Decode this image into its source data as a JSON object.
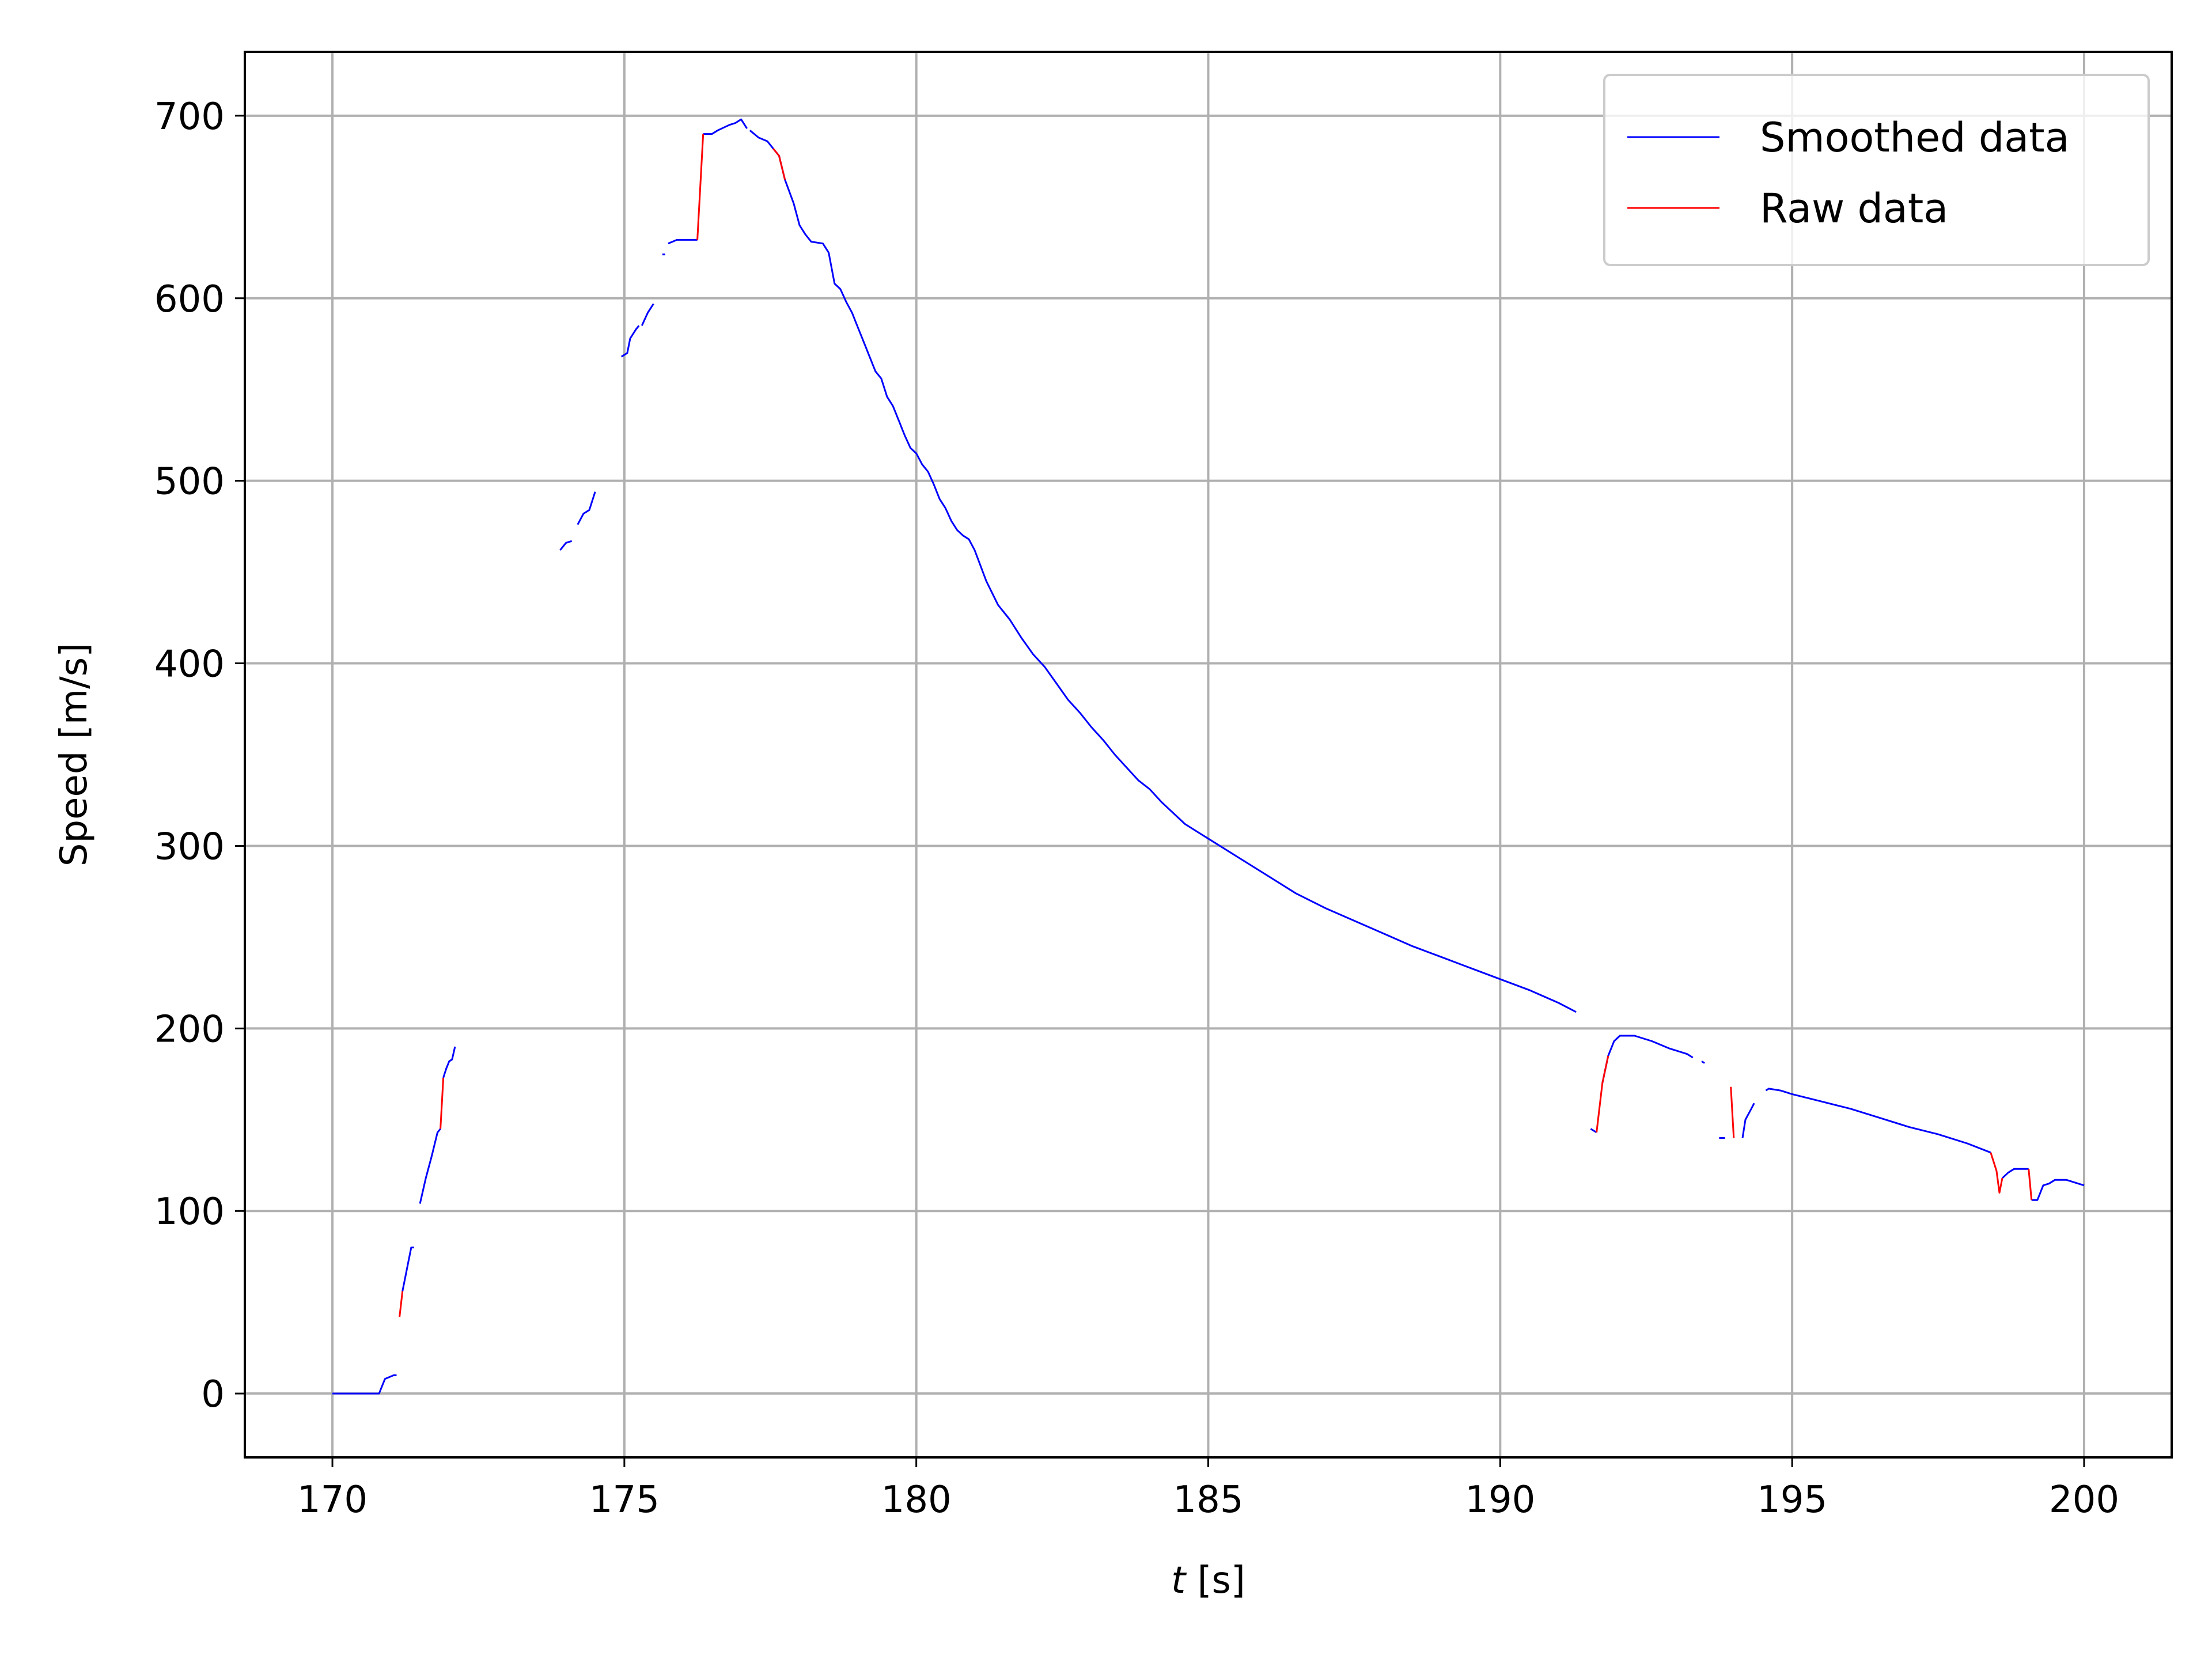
{
  "chart_data": {
    "type": "line",
    "title": "",
    "xlabel_var": "t",
    "xlabel_unit": " [s]",
    "ylabel": "Speed [m/s]",
    "xlim": [
      168.5,
      201.5
    ],
    "ylim": [
      -35,
      735
    ],
    "xticks": [
      170,
      175,
      180,
      185,
      190,
      195,
      200
    ],
    "yticks": [
      0,
      100,
      200,
      300,
      400,
      500,
      600,
      700
    ],
    "grid": true,
    "legend": {
      "placement": "top-right"
    },
    "series": [
      {
        "name": "Smoothed data",
        "color": "#0000ff",
        "segments": [
          [
            [
              170.0,
              0
            ],
            [
              170.8,
              0
            ],
            [
              170.9,
              8
            ],
            [
              171.05,
              10
            ],
            [
              171.1,
              10
            ]
          ],
          [
            [
              171.2,
              56
            ],
            [
              171.3,
              72
            ],
            [
              171.35,
              80
            ],
            [
              171.4,
              80
            ]
          ],
          [
            [
              171.5,
              104
            ],
            [
              171.6,
              118
            ],
            [
              171.7,
              130
            ],
            [
              171.8,
              143
            ],
            [
              171.85,
              145
            ]
          ],
          [
            [
              171.9,
              173
            ],
            [
              171.95,
              178
            ],
            [
              172.0,
              182
            ],
            [
              172.05,
              183
            ],
            [
              172.1,
              190
            ]
          ],
          [
            [
              173.9,
              462
            ],
            [
              174.0,
              466
            ],
            [
              174.1,
              467
            ]
          ],
          [
            [
              174.2,
              476
            ],
            [
              174.3,
              482
            ],
            [
              174.4,
              484
            ],
            [
              174.5,
              494
            ]
          ],
          [
            [
              174.95,
              568
            ],
            [
              175.05,
              570
            ],
            [
              175.1,
              578
            ],
            [
              175.2,
              583
            ],
            [
              175.25,
              585
            ]
          ],
          [
            [
              175.3,
              585
            ],
            [
              175.4,
              592
            ],
            [
              175.5,
              597
            ]
          ],
          [
            [
              175.65,
              624
            ],
            [
              175.7,
              624
            ]
          ],
          [
            [
              175.75,
              630
            ],
            [
              175.9,
              632
            ],
            [
              176.1,
              632
            ],
            [
              176.25,
              632
            ]
          ],
          [
            [
              176.35,
              690
            ],
            [
              176.5,
              690
            ],
            [
              176.6,
              692
            ],
            [
              176.8,
              695
            ],
            [
              176.9,
              696
            ],
            [
              177.0,
              698
            ],
            [
              177.1,
              693
            ]
          ],
          [
            [
              177.15,
              692
            ],
            [
              177.3,
              688
            ],
            [
              177.45,
              686
            ],
            [
              177.55,
              682
            ],
            [
              177.65,
              678
            ],
            [
              177.75,
              665
            ],
            [
              177.9,
              652
            ],
            [
              178.0,
              640
            ],
            [
              178.1,
              635
            ],
            [
              178.2,
              631
            ],
            [
              178.4,
              630
            ],
            [
              178.5,
              625
            ],
            [
              178.6,
              608
            ],
            [
              178.7,
              605
            ],
            [
              178.8,
              598
            ],
            [
              178.9,
              592
            ],
            [
              179.0,
              584
            ],
            [
              179.1,
              576
            ],
            [
              179.2,
              568
            ],
            [
              179.3,
              560
            ],
            [
              179.4,
              556
            ],
            [
              179.5,
              546
            ],
            [
              179.6,
              541
            ],
            [
              179.7,
              533
            ],
            [
              179.8,
              525
            ],
            [
              179.9,
              518
            ],
            [
              180.0,
              515
            ],
            [
              180.1,
              509
            ],
            [
              180.2,
              505
            ],
            [
              180.3,
              498
            ],
            [
              180.4,
              490
            ],
            [
              180.5,
              485
            ],
            [
              180.6,
              478
            ],
            [
              180.7,
              473
            ],
            [
              180.8,
              470
            ],
            [
              180.9,
              468
            ],
            [
              181.0,
              462
            ],
            [
              181.2,
              445
            ],
            [
              181.4,
              432
            ],
            [
              181.6,
              424
            ],
            [
              181.8,
              414
            ],
            [
              182.0,
              405
            ],
            [
              182.2,
              398
            ],
            [
              182.4,
              389
            ],
            [
              182.6,
              380
            ],
            [
              182.8,
              373
            ],
            [
              183.0,
              365
            ],
            [
              183.2,
              358
            ],
            [
              183.4,
              350
            ],
            [
              183.6,
              343
            ],
            [
              183.8,
              336
            ],
            [
              184.0,
              331
            ],
            [
              184.2,
              324
            ],
            [
              184.4,
              318
            ],
            [
              184.6,
              312
            ],
            [
              184.8,
              308
            ],
            [
              185.0,
              304
            ],
            [
              185.5,
              294
            ],
            [
              186.0,
              284
            ],
            [
              186.5,
              274
            ],
            [
              187.0,
              266
            ],
            [
              187.5,
              259
            ],
            [
              188.0,
              252
            ],
            [
              188.5,
              245
            ],
            [
              189.0,
              239
            ],
            [
              189.5,
              233
            ],
            [
              190.0,
              227
            ],
            [
              190.5,
              221
            ],
            [
              191.0,
              214
            ],
            [
              191.3,
              209
            ]
          ],
          [
            [
              191.55,
              145
            ],
            [
              191.65,
              143
            ]
          ],
          [
            [
              191.75,
              170
            ],
            [
              191.85,
              185
            ],
            [
              191.95,
              193
            ],
            [
              192.05,
              196
            ],
            [
              192.3,
              196
            ],
            [
              192.6,
              193
            ],
            [
              192.9,
              189
            ],
            [
              193.2,
              186
            ],
            [
              193.3,
              184
            ]
          ],
          [
            [
              193.45,
              182
            ],
            [
              193.5,
              181
            ]
          ],
          [
            [
              193.75,
              140
            ],
            [
              193.85,
              140
            ]
          ],
          [
            [
              194.15,
              140
            ],
            [
              194.2,
              150
            ],
            [
              194.3,
              156
            ],
            [
              194.35,
              159
            ]
          ],
          [
            [
              194.55,
              166
            ],
            [
              194.6,
              167
            ],
            [
              194.8,
              166
            ],
            [
              195.0,
              164
            ],
            [
              195.5,
              160
            ],
            [
              196.0,
              156
            ],
            [
              196.5,
              151
            ],
            [
              197.0,
              146
            ],
            [
              197.5,
              142
            ],
            [
              198.0,
              137
            ],
            [
              198.4,
              132
            ]
          ],
          [
            [
              198.6,
              118
            ],
            [
              198.7,
              121
            ],
            [
              198.8,
              123
            ],
            [
              199.0,
              123
            ],
            [
              199.05,
              123
            ]
          ],
          [
            [
              199.1,
              106
            ],
            [
              199.2,
              106
            ],
            [
              199.3,
              114
            ],
            [
              199.4,
              115
            ],
            [
              199.5,
              117
            ],
            [
              199.7,
              117
            ],
            [
              199.9,
              115
            ],
            [
              200.0,
              114
            ]
          ]
        ]
      },
      {
        "name": "Raw data",
        "color": "#ff0000",
        "segments": [
          [
            [
              171.15,
              42
            ],
            [
              171.2,
              56
            ]
          ],
          [
            [
              171.85,
              145
            ],
            [
              171.9,
              173
            ]
          ],
          [
            [
              176.25,
              632
            ],
            [
              176.35,
              690
            ]
          ],
          [
            [
              177.55,
              682
            ],
            [
              177.65,
              678
            ],
            [
              177.75,
              665
            ]
          ],
          [
            [
              191.65,
              143
            ],
            [
              191.75,
              170
            ],
            [
              191.85,
              185
            ]
          ],
          [
            [
              193.95,
              168
            ],
            [
              194.0,
              140
            ]
          ],
          [
            [
              198.4,
              132
            ],
            [
              198.5,
              122
            ],
            [
              198.55,
              110
            ],
            [
              198.6,
              118
            ]
          ],
          [
            [
              199.05,
              123
            ],
            [
              199.1,
              106
            ]
          ]
        ]
      }
    ]
  }
}
